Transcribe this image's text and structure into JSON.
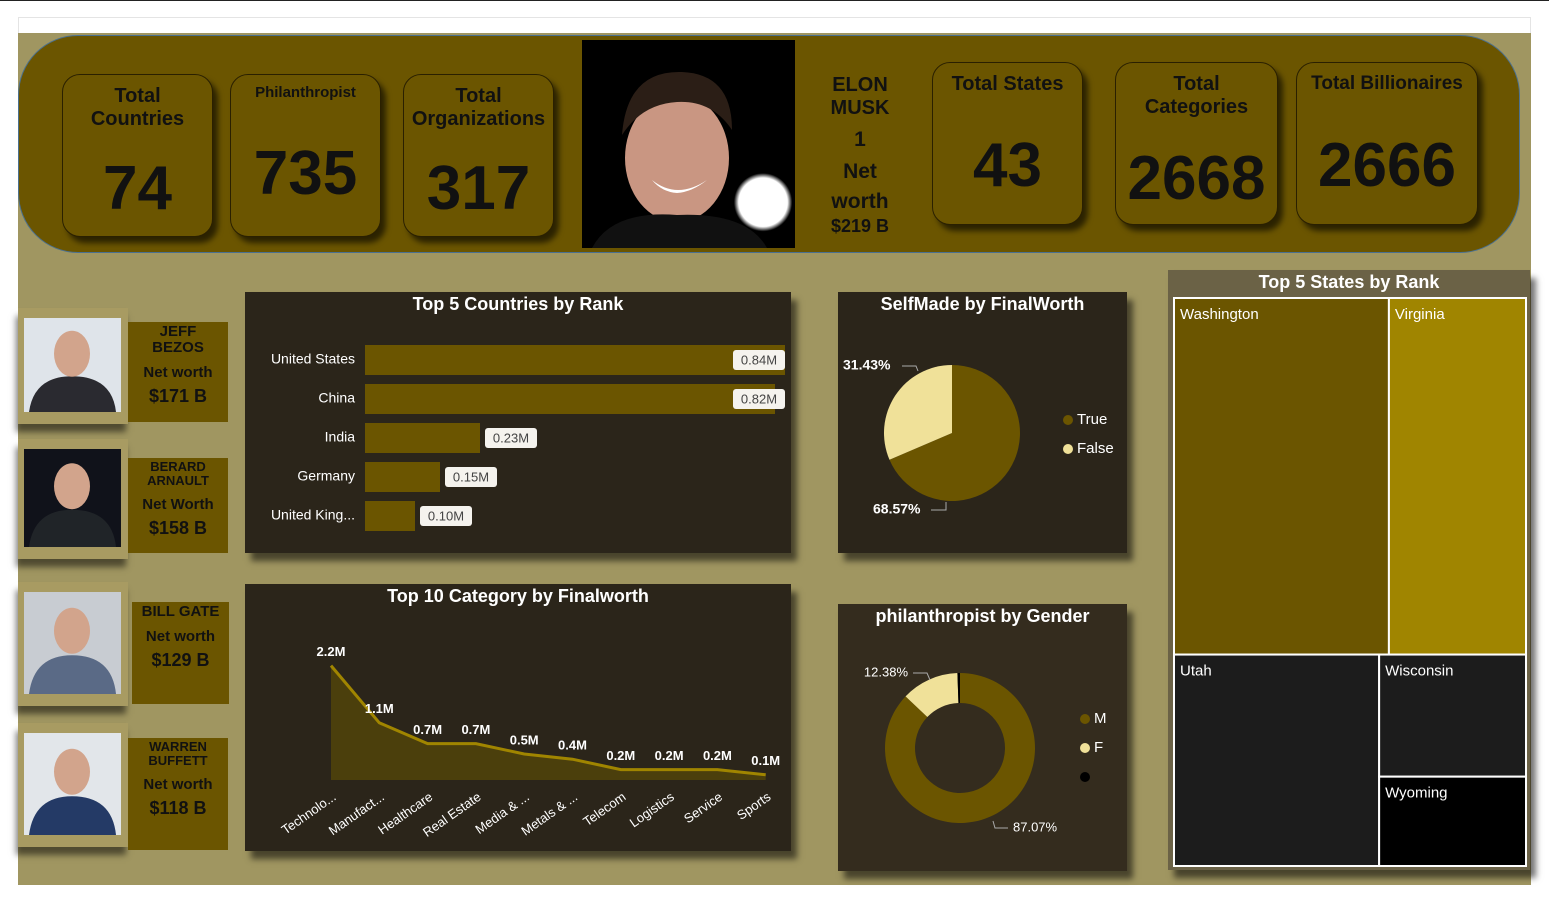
{
  "kpis": [
    {
      "label": "Total Countries",
      "value": 74
    },
    {
      "label": "Philanthropist",
      "value": 735
    },
    {
      "label": "Total Organizations",
      "value": 317
    },
    {
      "label": "Total States",
      "value": 43
    },
    {
      "label": "Total Categories",
      "value": 2668
    },
    {
      "label": "Total Billionaires",
      "value": 2666
    }
  ],
  "featured": {
    "name": "ELON MUSK",
    "rank": "1",
    "label": "Net worth",
    "worth": "$219 B"
  },
  "people": [
    {
      "name": "JEFF BEZOS",
      "label": "Net worth",
      "worth": "$171 B"
    },
    {
      "name": "BERARD ARNAULT",
      "label": "Net Worth",
      "worth": "$158 B"
    },
    {
      "name": "BILL GATE",
      "label": "Net worth",
      "worth": "$129 B"
    },
    {
      "name": "WARREN BUFFETT",
      "label": "Net worth",
      "worth": "$118 B"
    }
  ],
  "chart_data": [
    {
      "type": "bar",
      "orientation": "horizontal",
      "title": "Top 5 Countries by Rank",
      "categories": [
        "United States",
        "China",
        "India",
        "Germany",
        "United King..."
      ],
      "values": [
        840000,
        820000,
        230000,
        150000,
        100000
      ],
      "value_labels": [
        "0.84M",
        "0.82M",
        "0.23M",
        "0.15M",
        "0.10M"
      ],
      "color": "#6b5500"
    },
    {
      "type": "pie",
      "title": "SelfMade by FinalWorth",
      "categories": [
        "True",
        "False"
      ],
      "values": [
        68.57,
        31.43
      ],
      "value_labels": [
        "68.57%",
        "31.43%"
      ],
      "colors": [
        "#6b5500",
        "#f0e199"
      ]
    },
    {
      "type": "area",
      "title": "Top 10 Category by Finalworth",
      "categories": [
        "Technolo...",
        "Manufact...",
        "Healthcare",
        "Real Estate",
        "Media & ...",
        "Metals & ...",
        "Telecom",
        "Logistics",
        "Service",
        "Sports"
      ],
      "values": [
        2200000,
        1100000,
        700000,
        700000,
        500000,
        400000,
        200000,
        200000,
        200000,
        100000
      ],
      "value_labels": [
        "2.2M",
        "1.1M",
        "0.7M",
        "0.7M",
        "0.5M",
        "0.4M",
        "0.2M",
        "0.2M",
        "0.2M",
        "0.1M"
      ],
      "color": "#a08500",
      "fill": "#4b3f0c"
    },
    {
      "type": "donut",
      "title": "philanthropist by Gender",
      "categories": [
        "M",
        "F",
        null
      ],
      "values": [
        87.07,
        12.38,
        0.55
      ],
      "value_labels": [
        "87.07%",
        "12.38%",
        null
      ],
      "colors": [
        "#6b5500",
        "#f0e199",
        "#000000"
      ]
    },
    {
      "type": "treemap",
      "title": "Top 5 States by Rank",
      "categories": [
        "Washington",
        "Virginia",
        "Utah",
        "Wisconsin",
        "Wyoming"
      ],
      "values": [
        76.5,
        48.8,
        43.3,
        17.9,
        13.1
      ],
      "colors": [
        "#6b5500",
        "#a08500",
        "#1c1c1c",
        "#1c1c1c",
        "#000000"
      ]
    }
  ]
}
